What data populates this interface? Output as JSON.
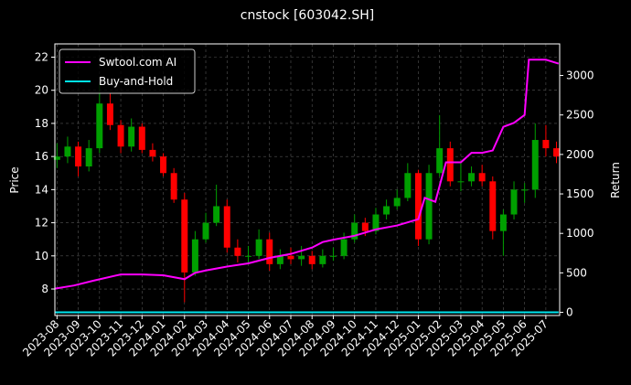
{
  "chart_data": {
    "type": "candlestick",
    "title": "cnstock [603042.SH]",
    "ylabel": "Price",
    "y2label": "Return",
    "grid": true,
    "legend": "upper left",
    "up_color": "#00a000",
    "down_color": "#ff0000",
    "xlim": [
      -0.1,
      23.65
    ],
    "ylim": [
      6.4,
      22.8
    ],
    "y2lim": [
      -40,
      3400
    ],
    "yticks": [
      8,
      10,
      12,
      14,
      16,
      18,
      20,
      22
    ],
    "y2ticks": [
      0,
      500,
      1000,
      1500,
      2000,
      2500,
      3000
    ],
    "xticks": [
      {
        "value": 0,
        "label": "2023-08"
      },
      {
        "value": 1,
        "label": "2023-09"
      },
      {
        "value": 2,
        "label": "2023-10"
      },
      {
        "value": 3,
        "label": "2023-11"
      },
      {
        "value": 4,
        "label": "2023-12"
      },
      {
        "value": 5,
        "label": "2024-01"
      },
      {
        "value": 6,
        "label": "2024-02"
      },
      {
        "value": 7,
        "label": "2024-03"
      },
      {
        "value": 8,
        "label": "2024-04"
      },
      {
        "value": 9,
        "label": "2024-05"
      },
      {
        "value": 10,
        "label": "2024-06"
      },
      {
        "value": 11,
        "label": "2024-07"
      },
      {
        "value": 12,
        "label": "2024-08"
      },
      {
        "value": 13,
        "label": "2024-09"
      },
      {
        "value": 14,
        "label": "2024-10"
      },
      {
        "value": 15,
        "label": "2024-11"
      },
      {
        "value": 16,
        "label": "2024-12"
      },
      {
        "value": 17,
        "label": "2025-01"
      },
      {
        "value": 18,
        "label": "2025-02"
      },
      {
        "value": 19,
        "label": "2025-03"
      },
      {
        "value": 20,
        "label": "2025-04"
      },
      {
        "value": 21,
        "label": "2025-05"
      },
      {
        "value": 22,
        "label": "2025-06"
      },
      {
        "value": 23,
        "label": "2025-07"
      }
    ],
    "candles": {
      "x": [
        0,
        0.5,
        1,
        1.5,
        2,
        2.5,
        3,
        3.5,
        4,
        4.5,
        5,
        5.5,
        6,
        6.5,
        7,
        7.5,
        8,
        8.5,
        9,
        9.5,
        10,
        10.5,
        11,
        11.5,
        12,
        12.5,
        13,
        13.5,
        14,
        14.5,
        15,
        15.5,
        16,
        16.5,
        17,
        17.5,
        18,
        18.5,
        19,
        19.5,
        20,
        20.5,
        21,
        21.5,
        22,
        22.5,
        23,
        23.5
      ],
      "open": [
        15.8,
        16.0,
        16.6,
        15.4,
        16.5,
        19.2,
        17.9,
        16.6,
        17.8,
        16.4,
        16.0,
        15.0,
        13.4,
        9.0,
        11.0,
        12.0,
        13.0,
        10.5,
        10.0,
        10.0,
        11.0,
        9.5,
        10.0,
        9.8,
        10.0,
        9.5,
        10.0,
        10.0,
        11.0,
        12.0,
        11.5,
        12.5,
        13.0,
        13.5,
        15.0,
        11.0,
        15.0,
        16.5,
        14.5,
        14.5,
        15.0,
        14.5,
        11.5,
        12.5,
        14.0,
        14.0,
        17.0,
        16.5
      ],
      "high": [
        16.8,
        17.2,
        16.9,
        17.0,
        20.4,
        19.8,
        18.2,
        18.3,
        18.0,
        16.8,
        16.2,
        15.3,
        13.8,
        11.5,
        12.6,
        14.3,
        13.4,
        11.0,
        10.6,
        11.6,
        11.4,
        10.4,
        10.5,
        10.6,
        10.3,
        10.4,
        10.5,
        11.4,
        12.5,
        12.3,
        12.9,
        13.4,
        14.0,
        15.6,
        15.2,
        15.5,
        18.5,
        16.9,
        15.6,
        15.4,
        15.5,
        14.8,
        12.8,
        14.5,
        14.4,
        18.0,
        17.9,
        16.9
      ],
      "low": [
        15.3,
        15.6,
        14.8,
        15.1,
        16.2,
        17.6,
        16.2,
        16.3,
        16.2,
        15.7,
        14.8,
        13.2,
        7.2,
        8.8,
        10.8,
        11.8,
        10.2,
        9.6,
        9.5,
        9.8,
        9.1,
        9.2,
        9.5,
        9.4,
        9.2,
        9.3,
        9.7,
        9.8,
        10.8,
        11.2,
        11.3,
        12.2,
        12.8,
        13.3,
        10.6,
        10.7,
        14.8,
        14.2,
        13.9,
        14.2,
        14.2,
        11.0,
        10.0,
        12.2,
        13.2,
        13.5,
        16.0,
        15.6
      ],
      "close": [
        16.0,
        16.6,
        15.4,
        16.5,
        19.2,
        17.9,
        16.6,
        17.8,
        16.4,
        16.0,
        15.0,
        13.4,
        9.0,
        11.0,
        12.0,
        13.0,
        10.5,
        10.0,
        10.0,
        11.0,
        9.5,
        10.0,
        9.8,
        10.0,
        9.5,
        10.0,
        10.0,
        11.0,
        12.0,
        11.5,
        12.5,
        13.0,
        13.5,
        15.0,
        11.0,
        15.0,
        16.5,
        14.5,
        14.5,
        15.0,
        14.5,
        11.5,
        12.5,
        14.0,
        14.0,
        17.0,
        16.5,
        16.0
      ]
    },
    "series": [
      {
        "name": "Swtool.com AI",
        "color": "#ff00ff",
        "axis": "y2",
        "x": [
          -0.1,
          0.8,
          1.7,
          3,
          4,
          5,
          6,
          6.5,
          7,
          8,
          9,
          10,
          11,
          12,
          12.5,
          13,
          14,
          15,
          16,
          17,
          17.3,
          17.8,
          18,
          18.3,
          19,
          19.5,
          20,
          20.5,
          21,
          21.5,
          22,
          22.2,
          23,
          23.6
        ],
        "values": [
          300,
          340,
          400,
          480,
          480,
          470,
          420,
          500,
          530,
          580,
          620,
          690,
          740,
          820,
          890,
          920,
          970,
          1050,
          1100,
          1180,
          1450,
          1400,
          1600,
          1900,
          1900,
          2020,
          2020,
          2050,
          2350,
          2400,
          2500,
          3200,
          3200,
          3150
        ]
      },
      {
        "name": "Buy-and-Hold",
        "color": "#00e5ee",
        "axis": "y2",
        "x": [
          -0.1,
          23.6
        ],
        "values": [
          1,
          1
        ]
      }
    ]
  }
}
